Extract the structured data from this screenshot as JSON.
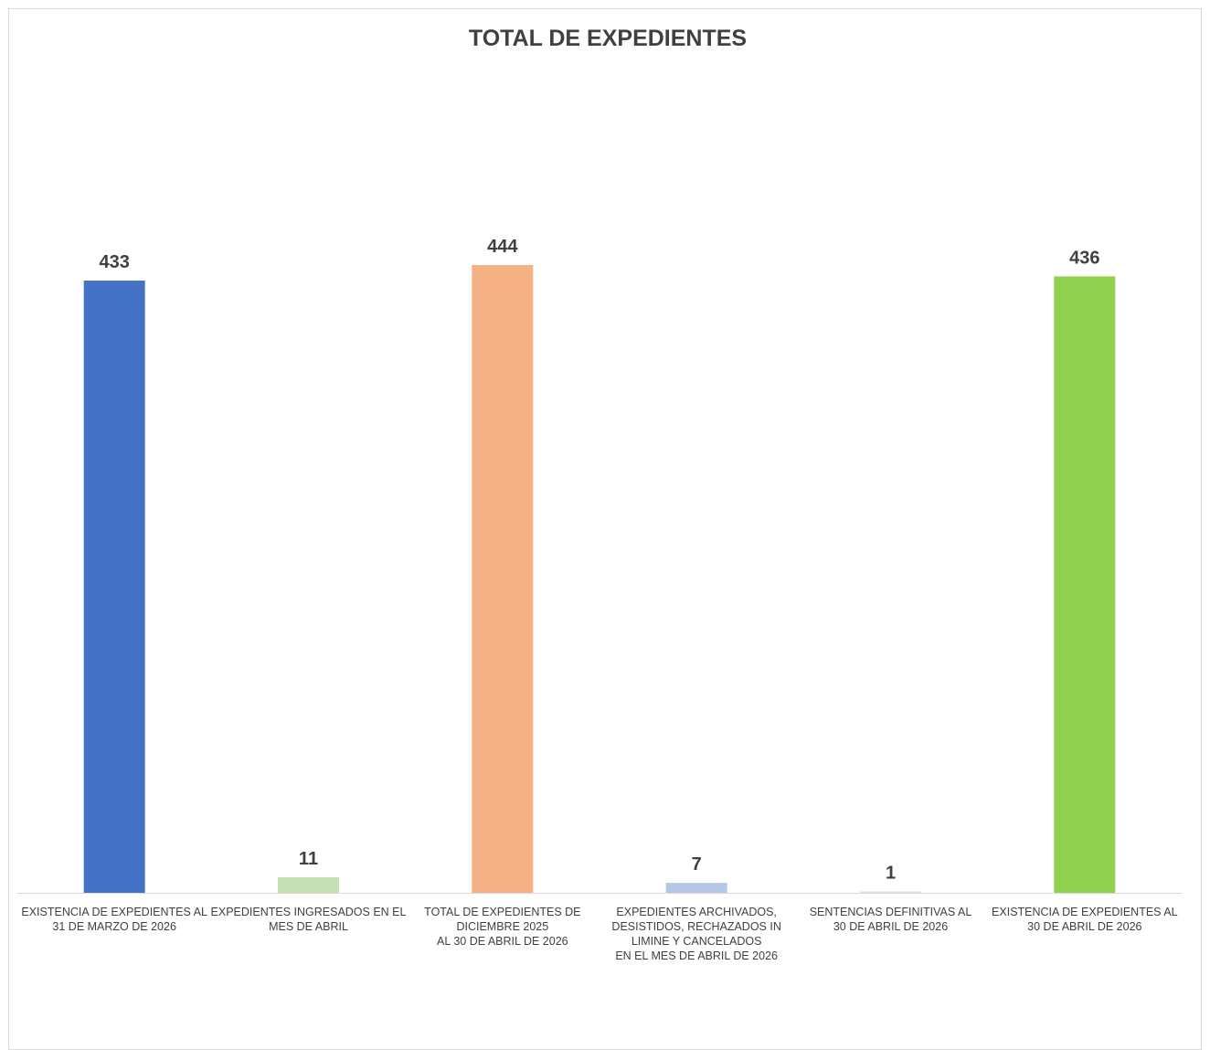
{
  "chart_data": {
    "type": "bar",
    "title": "TOTAL DE EXPEDIENTES",
    "categories": [
      "EXISTENCIA DE EXPEDIENTES AL\n31 DE MARZO DE 2026",
      "EXPEDIENTES INGRESADOS EN EL\nMES DE ABRIL",
      "TOTAL DE EXPEDIENTES DE\nDICIEMBRE 2025\nAL 30 DE ABRIL DE 2026",
      "EXPEDIENTES ARCHIVADOS,\nDESISTIDOS, RECHAZADOS IN\nLIMINE Y CANCELADOS\nEN EL MES DE ABRIL DE 2026",
      "SENTENCIAS DEFINITIVAS AL\n30 DE ABRIL DE 2026",
      "EXISTENCIA DE EXPEDIENTES AL\n30 DE ABRIL DE 2026"
    ],
    "values": [
      433,
      11,
      444,
      7,
      1,
      436
    ],
    "colors": [
      "#4472c4",
      "#c5e0b4",
      "#f4b183",
      "#b4c7e7",
      "#dae3f3",
      "#92d050"
    ],
    "ylim": [
      0,
      444
    ],
    "xlabel": "",
    "ylabel": "",
    "grid": false,
    "legend": "none"
  }
}
